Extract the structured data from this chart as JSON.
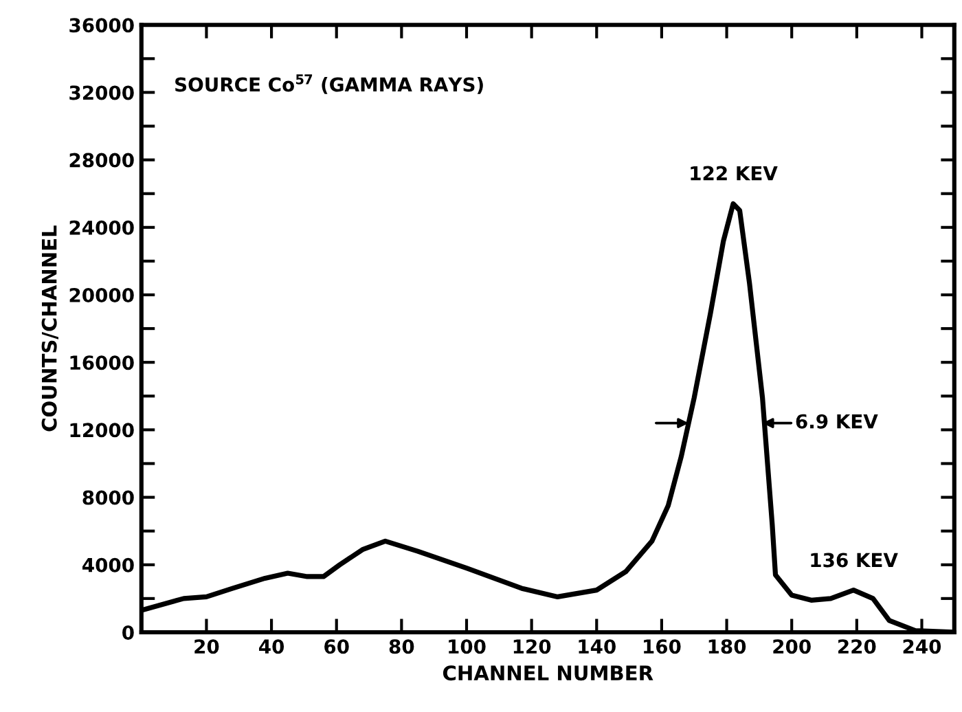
{
  "chart_data": {
    "type": "line",
    "xlabel": "CHANNEL NUMBER",
    "ylabel": "COUNTS/CHANNEL",
    "x": [
      0,
      13,
      20,
      28,
      38,
      45,
      51,
      56,
      61,
      68,
      75,
      85,
      100,
      117,
      128,
      140,
      149,
      157,
      162,
      166,
      170,
      175,
      179,
      182,
      184,
      187,
      191,
      194,
      195,
      200,
      206,
      212,
      219,
      225,
      230,
      238,
      250
    ],
    "series": [
      {
        "color": "#000000",
        "values": [
          1300,
          2000,
          2100,
          2600,
          3200,
          3500,
          3300,
          3300,
          4000,
          4900,
          5400,
          4800,
          3800,
          2600,
          2100,
          2500,
          3600,
          5400,
          7500,
          10400,
          13900,
          18900,
          23200,
          25400,
          25000,
          20700,
          13900,
          6400,
          3400,
          2200,
          1900,
          2000,
          2500,
          2000,
          700,
          100,
          0
        ]
      }
    ],
    "xlim": [
      0,
      250
    ],
    "ylim": [
      0,
      36000
    ],
    "xticks": [
      {
        "value": 0,
        "label": null
      },
      20,
      40,
      60,
      80,
      100,
      120,
      140,
      160,
      180,
      200,
      220,
      240
    ],
    "yticks": [
      0,
      {
        "value": 2000,
        "label": null
      },
      4000,
      {
        "value": 6000,
        "label": null
      },
      8000,
      {
        "value": 10000,
        "label": null
      },
      12000,
      {
        "value": 14000,
        "label": null
      },
      16000,
      {
        "value": 18000,
        "label": null
      },
      20000,
      {
        "value": 22000,
        "label": null
      },
      24000,
      {
        "value": 26000,
        "label": null
      },
      28000,
      {
        "value": 30000,
        "label": null
      },
      32000,
      {
        "value": 34000,
        "label": null
      },
      36000
    ],
    "grid": false,
    "legend": false,
    "marker": "none",
    "line_style": "solid",
    "annotations": [
      "SOURCE Co$^{57}$ (GAMMA RAYS)",
      {
        "text": "122 KEV",
        "x": 182,
        "y": 25430
      },
      {
        "text": "6.9 KEV",
        "x": 191,
        "y": 12400
      },
      {
        "text": "136 KEV",
        "x": 219,
        "y": 2500
      }
    ]
  }
}
